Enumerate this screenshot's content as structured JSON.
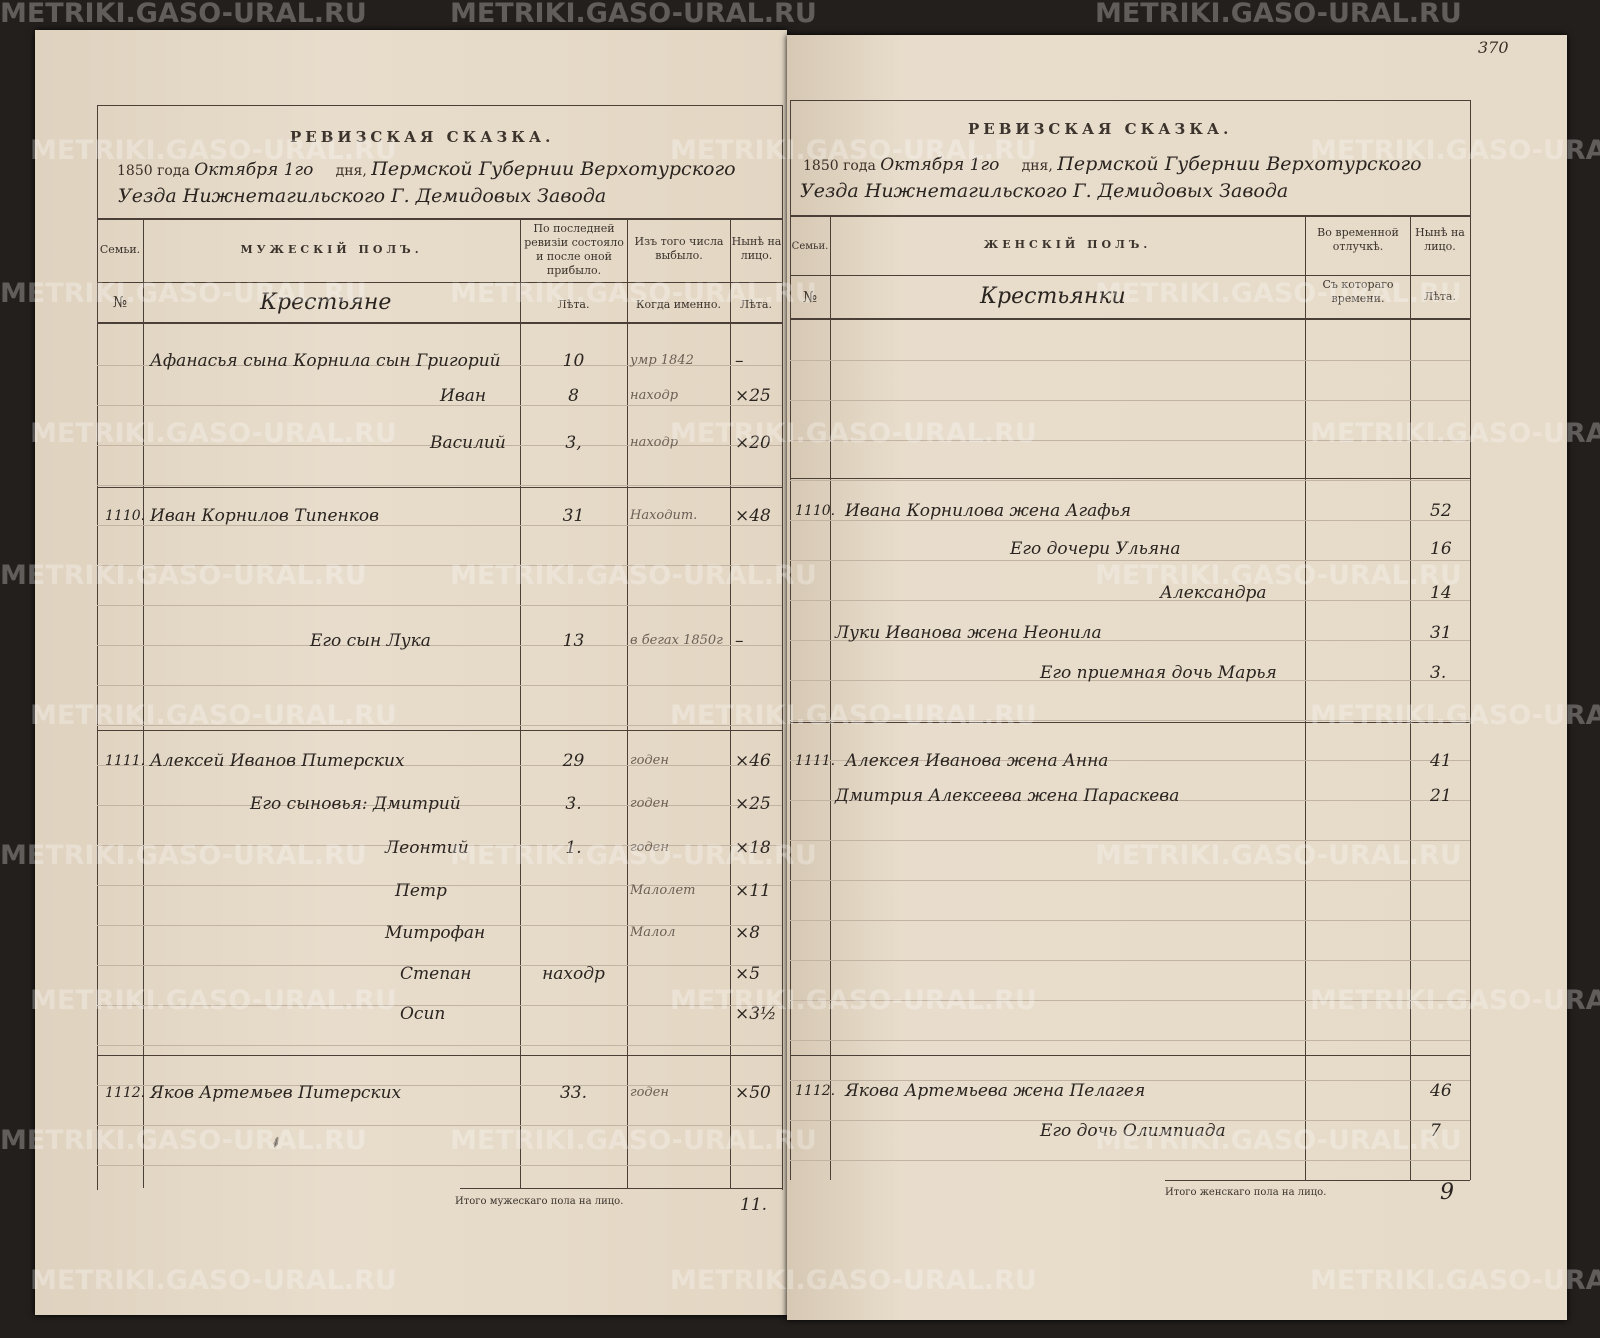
{
  "watermark": "METRIKI.GASO-URAL.RU",
  "page_number": "370",
  "left": {
    "title": "РЕВИЗСКАЯ СКАЗКА.",
    "year": "1850",
    "goda": "года",
    "date": "Октября 1го",
    "dnya": "дня,",
    "place1": "Пермской Губернии Верхотурского",
    "place2": "Уезда Нижнетагильского Г. Демидовых Завода",
    "headers": {
      "family": "Семьи.",
      "sex": "МУЖЕСКІЙ ПОЛЪ.",
      "last_rev": "По последней ревизіи состояло и после оной прибыло.",
      "left": "Изъ того числа выбыло.",
      "now": "Нынѣ на лицо.",
      "no": "№",
      "estate": "Крестьяне",
      "years": "Лѣта.",
      "when": "Когда именно.",
      "years2": "Лѣта."
    },
    "rows": [
      {
        "fam": "",
        "name": "Афанасья сына Корнила сын Григорий",
        "age": "10",
        "when": "умр 1842",
        "now": "–"
      },
      {
        "fam": "",
        "name": "Иван",
        "age": "8",
        "when": "находр",
        "now": "×25"
      },
      {
        "fam": "",
        "name": "Василий",
        "age": "3,",
        "when": "находр",
        "now": "×20"
      },
      {
        "fam": "1110.",
        "name": "Иван Корнилов Типенков",
        "age": "31",
        "when": "Находит.",
        "now": "×48"
      },
      {
        "fam": "",
        "name": "Его сын Лука",
        "age": "13",
        "when": "в бегах 1850г",
        "now": "–"
      },
      {
        "fam": "1111.",
        "name": "Алексей Иванов Питерских",
        "age": "29",
        "when": "годен",
        "now": "×46"
      },
      {
        "fam": "",
        "name": "Его сыновья: Дмитрий",
        "age": "3.",
        "when": "годен",
        "now": "×25"
      },
      {
        "fam": "",
        "name": "Леонтий",
        "age": "1.",
        "when": "годен",
        "now": "×18"
      },
      {
        "fam": "",
        "name": "Петр",
        "age": "",
        "when": "Малолет",
        "now": "×11"
      },
      {
        "fam": "",
        "name": "Митрофан",
        "age": "",
        "when": "Малол",
        "now": "×8"
      },
      {
        "fam": "",
        "name": "Степан",
        "age": "находр",
        "when": "",
        "now": "×5"
      },
      {
        "fam": "",
        "name": "Осип",
        "age": "",
        "when": "",
        "now": "×3½"
      },
      {
        "fam": "1112.",
        "name": "Яков Артемьев Питерских",
        "age": "33.",
        "when": "годен",
        "now": "×50"
      }
    ],
    "total_label": "Итого мужескаго пола на лицо.",
    "total": "11."
  },
  "right": {
    "title": "РЕВИЗСКАЯ СКАЗКА.",
    "year": "1850",
    "goda": "года",
    "date": "Октября 1го",
    "dnya": "дня,",
    "place1": "Пермской Губернии Верхотурского",
    "place2": "Уезда Нижнетагильского Г. Демидовых Завода",
    "headers": {
      "family": "Семьи.",
      "sex": "ЖЕНСКІЙ ПОЛЪ.",
      "absence": "Во временной отлучкѣ.",
      "now": "Нынѣ на лицо.",
      "no": "№",
      "estate": "Крестьянки",
      "since": "Съ котораго времени.",
      "years": "Лѣта."
    },
    "rows": [
      {
        "fam": "1110.",
        "name": "Ивана Корнилова жена Агафья",
        "age": "52"
      },
      {
        "fam": "",
        "name": "Его дочери Ульяна",
        "age": "16"
      },
      {
        "fam": "",
        "name": "Александра",
        "age": "14"
      },
      {
        "fam": "",
        "name": "Луки Иванова жена Неонила",
        "age": "31"
      },
      {
        "fam": "",
        "name": "Его приемная дочь Марья",
        "age": "3."
      },
      {
        "fam": "1111.",
        "name": "Алексея Иванова жена Анна",
        "age": "41"
      },
      {
        "fam": "",
        "name": "Дмитрия Алексеева жена Параскева",
        "age": "21"
      },
      {
        "fam": "1112.",
        "name": "Якова Артемьева жена Пелагея",
        "age": "46"
      },
      {
        "fam": "",
        "name": "Его дочь Олимпиада",
        "age": "7"
      }
    ],
    "total_label": "Итого женскаго пола на лицо.",
    "total": "9"
  }
}
